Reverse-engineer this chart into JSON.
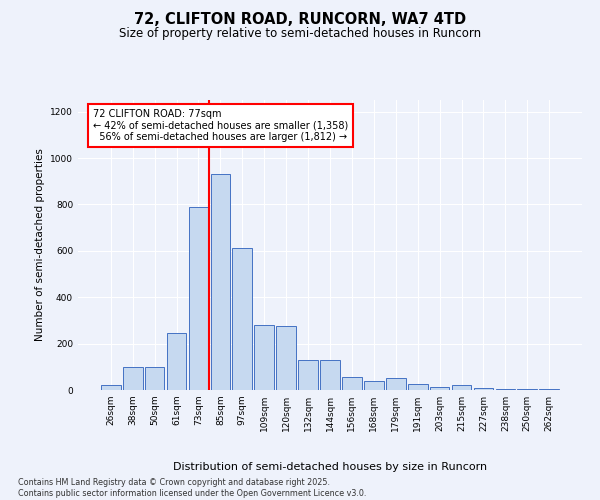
{
  "title1": "72, CLIFTON ROAD, RUNCORN, WA7 4TD",
  "title2": "Size of property relative to semi-detached houses in Runcorn",
  "xlabel": "Distribution of semi-detached houses by size in Runcorn",
  "ylabel": "Number of semi-detached properties",
  "categories": [
    "26sqm",
    "38sqm",
    "50sqm",
    "61sqm",
    "73sqm",
    "85sqm",
    "97sqm",
    "109sqm",
    "120sqm",
    "132sqm",
    "144sqm",
    "156sqm",
    "168sqm",
    "179sqm",
    "191sqm",
    "203sqm",
    "215sqm",
    "227sqm",
    "238sqm",
    "250sqm",
    "262sqm"
  ],
  "values": [
    20,
    100,
    100,
    245,
    790,
    930,
    610,
    280,
    275,
    130,
    130,
    55,
    40,
    50,
    25,
    15,
    20,
    8,
    5,
    5,
    5
  ],
  "bar_color": "#c6d9f0",
  "bar_edge_color": "#4472c4",
  "red_line_index": 4.5,
  "property_sqm": 77,
  "property_label": "72 CLIFTON ROAD: 77sqm",
  "pct_smaller": 42,
  "pct_larger": 56,
  "count_smaller": 1358,
  "count_larger": 1812,
  "ylim": [
    0,
    1250
  ],
  "yticks": [
    0,
    200,
    400,
    600,
    800,
    1000,
    1200
  ],
  "footer1": "Contains HM Land Registry data © Crown copyright and database right 2025.",
  "footer2": "Contains public sector information licensed under the Open Government Licence v3.0.",
  "background_color": "#eef2fb"
}
